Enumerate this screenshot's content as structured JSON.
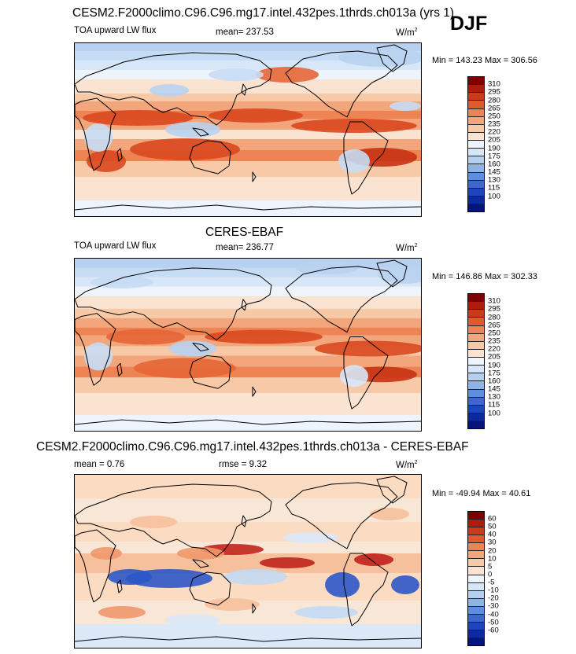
{
  "season": "DJF",
  "panels": [
    {
      "title": "CESM2.F2000climo.C96.C96.mg17.intel.432pes.1thrds.ch013a (yrs 1)",
      "left_label": "TOA upward LW flux",
      "stat_text": "mean= 237.53",
      "units": "W/m",
      "units_exp": "2",
      "minmax": "Min = 143.23 Max = 306.56",
      "palette": "model"
    },
    {
      "title": "CERES-EBAF",
      "left_label": "TOA upward LW flux",
      "stat_text": "mean= 236.77",
      "units": "W/m",
      "units_exp": "2",
      "minmax": "Min = 146.86 Max = 302.33",
      "palette": "obs"
    },
    {
      "title": "CESM2.F2000climo.C96.C96.mg17.intel.432pes.1thrds.ch013a - CERES-EBAF",
      "left_label": "mean =   0.76",
      "stat_text": "rmse =   9.32",
      "units": "W/m",
      "units_exp": "2",
      "minmax": "Min = -49.94 Max =  40.61",
      "palette": "diff"
    }
  ],
  "colors": {
    "abs": [
      "#b8d1f0",
      "#c6dcf4",
      "#d7e7f8",
      "#eef4fb",
      "#fbe3d2",
      "#f7c9a7",
      "#f3a67b",
      "#ee8454",
      "#e66636",
      "#d9481f",
      "#c73213"
    ],
    "diff": [
      "#c3d9f3",
      "#dae8f8",
      "#f8e6d6",
      "#fbdcc3",
      "#f6c09c",
      "#f0976b"
    ],
    "dark_red": "#c0231c",
    "dark_blue": "#2c56c7"
  },
  "chart_data": [
    {
      "type": "heatmap",
      "title": "CESM2.F2000climo.C96.C96.mg17.intel.432pes.1thrds.ch013a (yrs 1)",
      "variable": "TOA upward LW flux",
      "units": "W/m2",
      "mean": 237.53,
      "min": 143.23,
      "max": 306.56,
      "colorbar": {
        "levels": [
          310,
          295,
          280,
          265,
          250,
          235,
          220,
          205,
          190,
          175,
          160,
          145,
          130,
          115,
          100
        ],
        "colors": [
          "#800000",
          "#b01b0f",
          "#cc3a18",
          "#e05a2d",
          "#ee8454",
          "#f3a67b",
          "#f7c9a7",
          "#fbe3d2",
          "#eef4fb",
          "#d5e6f8",
          "#b4cff0",
          "#8eb4e7",
          "#5e8edf",
          "#3b67cf",
          "#1d45bf",
          "#0c2aa0",
          "#05147a"
        ]
      }
    },
    {
      "type": "heatmap",
      "title": "CERES-EBAF",
      "variable": "TOA upward LW flux",
      "units": "W/m2",
      "mean": 236.77,
      "min": 146.86,
      "max": 302.33,
      "colorbar": {
        "levels": [
          310,
          295,
          280,
          265,
          250,
          235,
          220,
          205,
          190,
          175,
          160,
          145,
          130,
          115,
          100
        ],
        "colors": [
          "#800000",
          "#b01b0f",
          "#cc3a18",
          "#e05a2d",
          "#ee8454",
          "#f3a67b",
          "#f7c9a7",
          "#fbe3d2",
          "#eef4fb",
          "#d5e6f8",
          "#b4cff0",
          "#8eb4e7",
          "#5e8edf",
          "#3b67cf",
          "#1d45bf",
          "#0c2aa0",
          "#05147a"
        ]
      }
    },
    {
      "type": "heatmap",
      "title": "CESM2.F2000climo.C96.C96.mg17.intel.432pes.1thrds.ch013a - CERES-EBAF",
      "units": "W/m2",
      "mean": 0.76,
      "rmse": 9.32,
      "min": -49.94,
      "max": 40.61,
      "colorbar": {
        "levels": [
          60,
          50,
          40,
          30,
          20,
          10,
          5,
          0,
          -5,
          -10,
          -20,
          -30,
          -40,
          -50,
          -60
        ],
        "colors": [
          "#800000",
          "#b01b0f",
          "#cc3a18",
          "#e05a2d",
          "#ee8454",
          "#f3a67b",
          "#f7c9a7",
          "#fbe3d2",
          "#eef4fb",
          "#d5e6f8",
          "#b4cff0",
          "#8eb4e7",
          "#5e8edf",
          "#3b67cf",
          "#1d45bf",
          "#0c2aa0",
          "#05147a"
        ]
      }
    }
  ]
}
